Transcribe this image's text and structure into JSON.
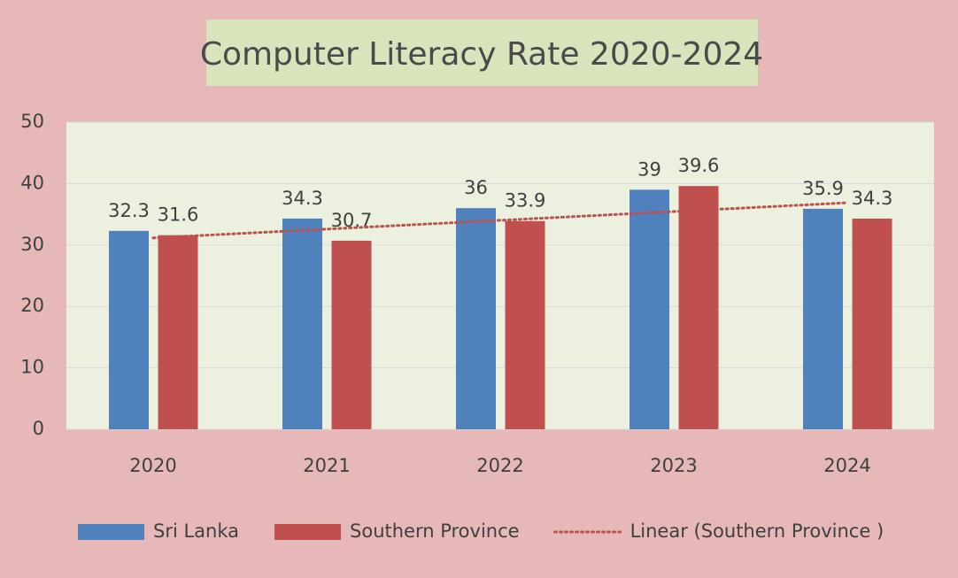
{
  "chart_data": {
    "type": "bar",
    "title": "Computer Literacy Rate  2020-2024",
    "categories": [
      "2020",
      "2021",
      "2022",
      "2023",
      "2024"
    ],
    "series": [
      {
        "name": "Sri Lanka",
        "color": "#4f81bd",
        "values": [
          32.3,
          34.3,
          36,
          39,
          35.9
        ]
      },
      {
        "name": "Southern Province",
        "color": "#c0504d",
        "values": [
          31.6,
          30.7,
          33.9,
          39.6,
          34.3
        ]
      }
    ],
    "trendline": {
      "name": "Linear (Southern Province )",
      "type": "linear",
      "series": 1,
      "color": "#c0504d"
    },
    "ylim": [
      0,
      50
    ],
    "yticks": [
      0,
      10,
      20,
      30,
      40,
      50
    ],
    "grid": true,
    "legend": "bottom"
  }
}
